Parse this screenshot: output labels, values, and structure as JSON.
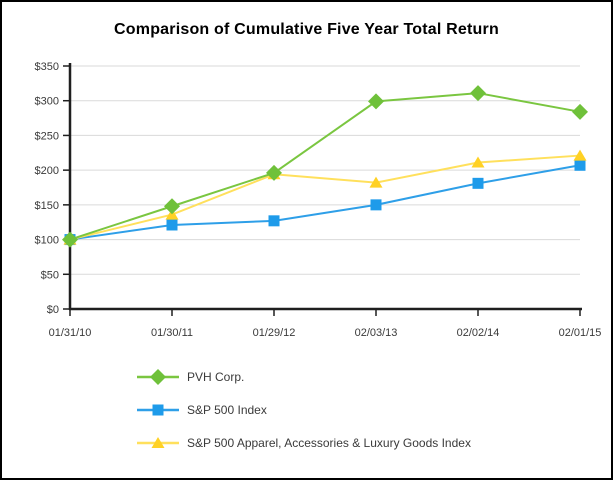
{
  "window": {
    "title": "Comparison of Cumulative Five Year Total Return"
  },
  "chart_data": {
    "type": "line",
    "title": "Comparison of Cumulative Five Year Total Return",
    "categories": [
      "01/31/10",
      "01/30/11",
      "01/29/12",
      "02/03/13",
      "02/02/14",
      "02/01/15"
    ],
    "series": [
      {
        "name": "PVH Corp.",
        "marker": "diamond",
        "color": "#6FC13A",
        "line_color": "#7AC640",
        "z": 2,
        "values": [
          100,
          148,
          196,
          299,
          311,
          284
        ]
      },
      {
        "name": "S&P 500 Index",
        "marker": "square",
        "color": "#1E9BEA",
        "line_color": "#2E9FE8",
        "z": 0,
        "values": [
          100,
          121,
          127,
          150,
          181,
          207
        ]
      },
      {
        "name": "S&P 500 Apparel, Accessories & Luxury Goods Index",
        "marker": "triangle",
        "color": "#FFD124",
        "line_color": "#FFE05C",
        "z": 1,
        "values": [
          100,
          136,
          194,
          182,
          211,
          221
        ]
      }
    ],
    "xlabel": "",
    "ylabel": "",
    "ylim": [
      0,
      350
    ],
    "ytick_step": 50,
    "ytick_labels": [
      "$0",
      "$50",
      "$100",
      "$150",
      "$200",
      "$250",
      "$300",
      "$350"
    ],
    "grid": true,
    "legend_position": "bottom-left"
  },
  "colors": {
    "background": "#FFFFFF",
    "border": "#000000",
    "axis": "#1F1F1F",
    "grid": "#DADADA",
    "label_text": "#3A3A3A",
    "title_text": "#000000"
  }
}
